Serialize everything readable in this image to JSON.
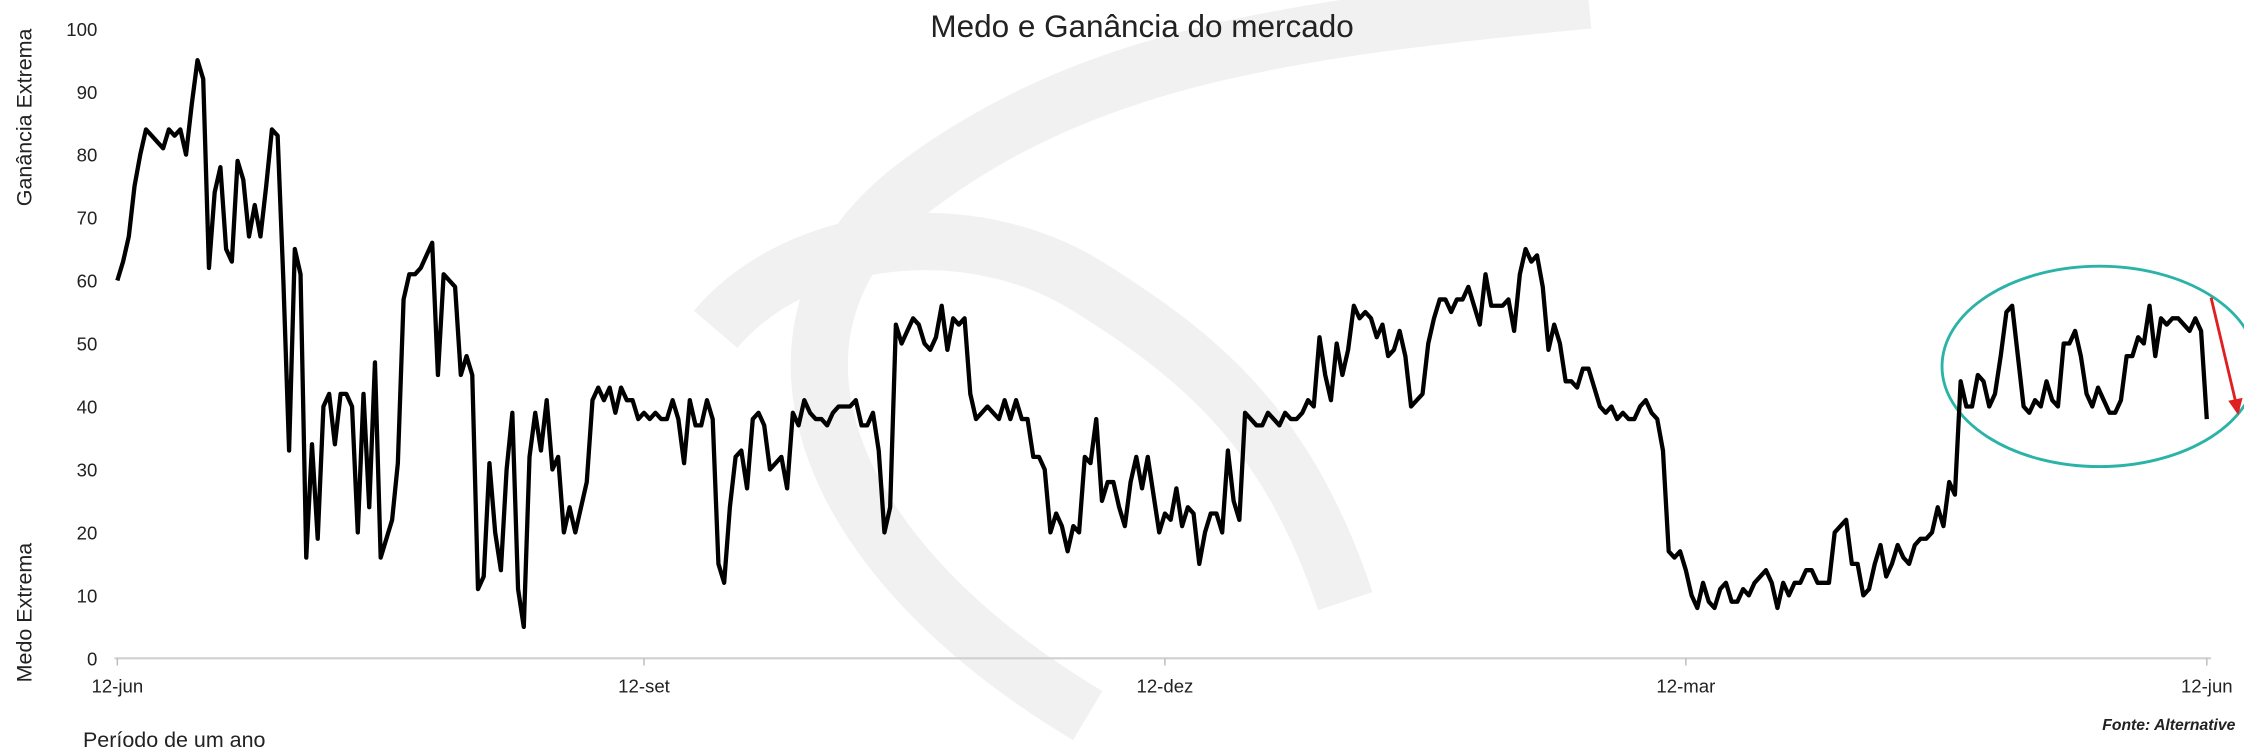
{
  "chart_data": {
    "type": "line",
    "title": "Medo e Ganância do mercado",
    "y_label_top": "Ganância Extrema",
    "y_label_bottom": "Medo Extrema",
    "x_label": "Período de um ano",
    "source": "Fonte: Alternative",
    "color": "#000000",
    "ylim": [
      0,
      100
    ],
    "yticks": [
      0,
      10,
      20,
      30,
      40,
      50,
      60,
      70,
      80,
      90,
      100
    ],
    "grid": false,
    "categories": [
      "12-jun",
      null,
      null,
      null,
      null,
      null,
      null,
      null,
      null,
      null,
      null,
      null,
      null,
      null,
      null,
      null,
      null,
      null,
      null,
      null,
      null,
      null,
      null,
      null,
      null,
      null,
      null,
      null,
      null,
      null,
      null,
      null,
      null,
      null,
      null,
      null,
      null,
      null,
      null,
      null,
      null,
      null,
      null,
      null,
      null,
      null,
      null,
      null,
      null,
      null,
      null,
      null,
      null,
      null,
      null,
      null,
      null,
      null,
      null,
      null,
      null,
      null,
      null,
      null,
      null,
      null,
      null,
      null,
      null,
      null,
      null,
      null,
      null,
      null,
      null,
      null,
      null,
      null,
      null,
      null,
      null,
      null,
      null,
      null,
      null,
      null,
      null,
      null,
      null,
      null,
      null,
      null,
      "12-set",
      null,
      null,
      null,
      null,
      null,
      null,
      null,
      null,
      null,
      null,
      null,
      null,
      null,
      null,
      null,
      null,
      null,
      null,
      null,
      null,
      null,
      null,
      null,
      null,
      null,
      null,
      null,
      null,
      null,
      null,
      null,
      null,
      null,
      null,
      null,
      null,
      null,
      null,
      null,
      null,
      null,
      null,
      null,
      null,
      null,
      null,
      null,
      null,
      null,
      null,
      null,
      null,
      null,
      null,
      null,
      null,
      null,
      null,
      null,
      null,
      null,
      null,
      null,
      null,
      null,
      null,
      null,
      null,
      null,
      null,
      null,
      null,
      null,
      null,
      null,
      null,
      null,
      null,
      null,
      null,
      null,
      null,
      null,
      null,
      null,
      null,
      null,
      null,
      null,
      null,
      "12-dez",
      null,
      null,
      null,
      null,
      null,
      null,
      null,
      null,
      null,
      null,
      null,
      null,
      null,
      null,
      null,
      null,
      null,
      null,
      null,
      null,
      null,
      null,
      null,
      null,
      null,
      null,
      null,
      null,
      null,
      null,
      null,
      null,
      null,
      null,
      null,
      null,
      null,
      null,
      null,
      null,
      null,
      null,
      null,
      null,
      null,
      null,
      null,
      null,
      null,
      null,
      null,
      null,
      null,
      null,
      null,
      null,
      null,
      null,
      null,
      null,
      null,
      null,
      null,
      null,
      null,
      null,
      null,
      null,
      null,
      null,
      null,
      null,
      null,
      null,
      null,
      null,
      null,
      null,
      null,
      null,
      null,
      null,
      null,
      null,
      null,
      null,
      null,
      null,
      null,
      null,
      "12-mar",
      null,
      null,
      null,
      null,
      null,
      null,
      null,
      null,
      null,
      null,
      null,
      null,
      null,
      null,
      null,
      null,
      null,
      null,
      null,
      null,
      null,
      null,
      null,
      null,
      null,
      null,
      null,
      null,
      null,
      null,
      null,
      null,
      null,
      null,
      null,
      null,
      null,
      null,
      null,
      null,
      null,
      null,
      null,
      null,
      null,
      null,
      null,
      null,
      null,
      null,
      null,
      null,
      null,
      null,
      null,
      null,
      null,
      null,
      null,
      null,
      null,
      null,
      null,
      null,
      null,
      null,
      null,
      null,
      null,
      null,
      null,
      null,
      null,
      null,
      null,
      null,
      null,
      null,
      null,
      null,
      null,
      null,
      null,
      null,
      null,
      null,
      null,
      null,
      null,
      null,
      "12-jun"
    ],
    "values": [
      60,
      63,
      67,
      75,
      80,
      84,
      83,
      82,
      81,
      84,
      83,
      84,
      80,
      88,
      95,
      92,
      62,
      74,
      78,
      65,
      63,
      79,
      76,
      67,
      72,
      67,
      75,
      84,
      83,
      60,
      33,
      65,
      61,
      16,
      34,
      19,
      40,
      42,
      34,
      42,
      42,
      40,
      20,
      42,
      24,
      47,
      16,
      19,
      22,
      31,
      57,
      61,
      61,
      62,
      64,
      66,
      45,
      61,
      60,
      59,
      45,
      48,
      45,
      11,
      13,
      31,
      20,
      14,
      30,
      39,
      11,
      5,
      32,
      39,
      33,
      41,
      30,
      32,
      20,
      24,
      20,
      24,
      28,
      41,
      43,
      41,
      43,
      39,
      43,
      41,
      41,
      38,
      39,
      38,
      39,
      38,
      38,
      41,
      38,
      31,
      41,
      37,
      37,
      41,
      38,
      15,
      12,
      24,
      32,
      33,
      27,
      38,
      39,
      37,
      30,
      31,
      32,
      27,
      39,
      37,
      41,
      39,
      38,
      38,
      37,
      39,
      40,
      40,
      40,
      41,
      37,
      37,
      39,
      33,
      20,
      24,
      53,
      50,
      52,
      54,
      53,
      50,
      49,
      51,
      56,
      49,
      54,
      53,
      54,
      42,
      38,
      39,
      40,
      39,
      38,
      41,
      38,
      41,
      38,
      38,
      32,
      32,
      30,
      20,
      23,
      21,
      17,
      21,
      20,
      32,
      31,
      38,
      25,
      28,
      28,
      24,
      21,
      28,
      32,
      27,
      32,
      26,
      20,
      23,
      22,
      27,
      21,
      24,
      23,
      15,
      20,
      23,
      23,
      20,
      33,
      25,
      22,
      39,
      38,
      37,
      37,
      39,
      38,
      37,
      39,
      38,
      38,
      39,
      41,
      40,
      51,
      45,
      41,
      50,
      45,
      49,
      56,
      54,
      55,
      54,
      51,
      53,
      48,
      49,
      52,
      48,
      40,
      41,
      42,
      50,
      54,
      57,
      57,
      55,
      57,
      57,
      59,
      56,
      53,
      61,
      56,
      56,
      56,
      57,
      52,
      61,
      65,
      63,
      64,
      59,
      49,
      53,
      50,
      44,
      44,
      43,
      46,
      46,
      43,
      40,
      39,
      40,
      38,
      39,
      38,
      38,
      40,
      41,
      39,
      38,
      33,
      17,
      16,
      17,
      14,
      10,
      8,
      12,
      9,
      8,
      11,
      12,
      9,
      9,
      11,
      10,
      12,
      13,
      14,
      12,
      8,
      12,
      10,
      12,
      12,
      14,
      14,
      12,
      12,
      12,
      20,
      21,
      22,
      15,
      15,
      10,
      11,
      15,
      18,
      13,
      15,
      18,
      16,
      15,
      18,
      19,
      19,
      20,
      24,
      21,
      28,
      26,
      44,
      40,
      40,
      45,
      44,
      40,
      42,
      48,
      55,
      56,
      48,
      40,
      39,
      41,
      40,
      44,
      41,
      40,
      50,
      50,
      52,
      48,
      42,
      40,
      43,
      41,
      39,
      39,
      41,
      48,
      48,
      51,
      50,
      56,
      48,
      54,
      53,
      54,
      54,
      53,
      52,
      54,
      52,
      38
    ]
  }
}
